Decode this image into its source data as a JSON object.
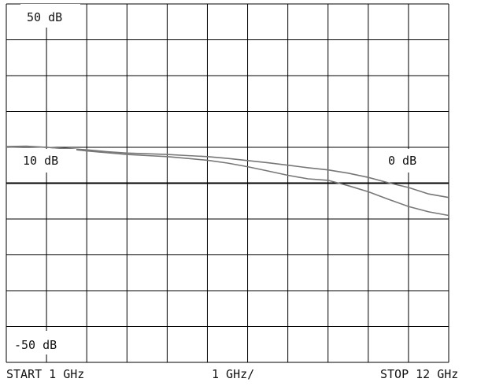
{
  "chart_data": {
    "type": "line",
    "x_label_start": "START 1 GHz",
    "x_label_scale": "1 GHz/",
    "x_label_stop": "STOP 12 GHz",
    "y_labels": {
      "top": "50 dB",
      "ref_left": "10 dB",
      "ref_right": "0 dB",
      "bottom": "-50 dB"
    },
    "grid": true,
    "x_range_ghz": [
      1,
      12
    ],
    "y_range_db": [
      -50,
      50
    ],
    "series": [
      {
        "x": [
          1.0,
          1.5,
          2.0,
          2.5,
          3.0,
          3.5,
          4.0,
          4.5,
          5.0,
          5.5,
          6.0,
          6.5,
          7.0,
          7.5,
          8.0,
          8.5,
          9.0,
          9.5,
          10.0,
          10.5,
          11.0,
          11.5,
          12.0
        ],
        "y": [
          10.0,
          10.2,
          10.0,
          9.7,
          9.3,
          8.8,
          8.4,
          8.2,
          8.0,
          7.7,
          7.4,
          6.9,
          6.3,
          5.7,
          5.0,
          4.3,
          3.7,
          2.8,
          1.6,
          0.1,
          -1.2,
          -3.0,
          -4.0
        ]
      },
      {
        "x": [
          1.0,
          1.5,
          2.0,
          2.5,
          3.0,
          3.5,
          4.0,
          4.5,
          5.0,
          5.5,
          6.0,
          6.5,
          7.0,
          7.5,
          8.0,
          8.5,
          9.0,
          9.5,
          10.0,
          10.5,
          11.0,
          11.5,
          12.0
        ],
        "y": [
          10.2,
          10.3,
          10.0,
          9.6,
          9.0,
          8.5,
          8.0,
          7.7,
          7.4,
          6.9,
          6.4,
          5.6,
          4.6,
          3.4,
          2.2,
          1.2,
          0.8,
          -0.7,
          -2.4,
          -4.5,
          -6.5,
          -8.0,
          -9.0
        ]
      }
    ],
    "colors": {
      "trace": "#777777",
      "grid": "#000000",
      "reference_line": "#000000",
      "label_background": "#ffffff"
    }
  }
}
